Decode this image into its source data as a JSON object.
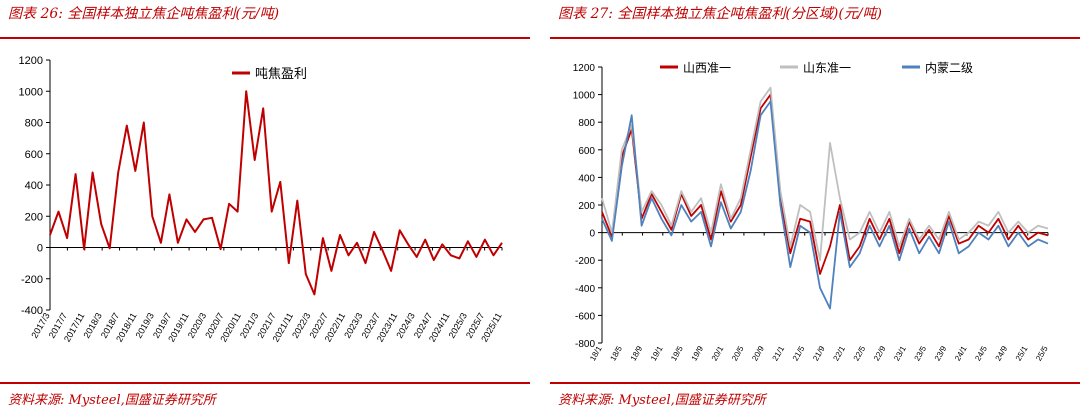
{
  "figures": [
    {
      "title": "图表 26:  全国样本独立焦企吨焦盈利(元/吨)",
      "source": "资料来源:  Mysteel,国盛证券研究所"
    },
    {
      "title": "图表 27:  全国样本独立焦企吨焦盈利(分区域)(元/吨)",
      "source": "资料来源:  Mysteel,国盛证券研究所"
    }
  ],
  "chart_data": [
    {
      "type": "line",
      "title": "",
      "xlabel": "",
      "ylabel": "",
      "ylim": [
        -400,
        1200
      ],
      "yticks": [
        -400,
        -200,
        0,
        200,
        400,
        600,
        800,
        1000,
        1200
      ],
      "x_tick_labels": [
        "2017/3",
        "2017/7",
        "2017/11",
        "2018/3",
        "2018/7",
        "2018/11",
        "2019/3",
        "2019/7",
        "2019/11",
        "2020/3",
        "2020/7",
        "2020/11",
        "2021/3",
        "2021/7",
        "2021/11",
        "2022/3",
        "2022/7",
        "2022/11",
        "2023/3",
        "2023/7",
        "2023/11",
        "2024/3",
        "2024/7",
        "2024/11",
        "2025/3",
        "2025/7",
        "2025/11"
      ],
      "legend_position": "top-center",
      "grid": false,
      "series": [
        {
          "name": "吨焦盈利",
          "color": "#c00000",
          "x": [
            "2017/3",
            "2017/5",
            "2017/7",
            "2017/9",
            "2017/11",
            "2018/1",
            "2018/3",
            "2018/5",
            "2018/7",
            "2018/9",
            "2018/11",
            "2019/1",
            "2019/3",
            "2019/5",
            "2019/7",
            "2019/9",
            "2019/11",
            "2020/1",
            "2020/3",
            "2020/5",
            "2020/7",
            "2020/9",
            "2020/11",
            "2021/1",
            "2021/3",
            "2021/5",
            "2021/7",
            "2021/9",
            "2021/11",
            "2022/1",
            "2022/3",
            "2022/5",
            "2022/7",
            "2022/9",
            "2022/11",
            "2023/1",
            "2023/3",
            "2023/5",
            "2023/7",
            "2023/9",
            "2023/11",
            "2024/1",
            "2024/3",
            "2024/5",
            "2024/7",
            "2024/9",
            "2024/11",
            "2025/1",
            "2025/3",
            "2025/5",
            "2025/7",
            "2025/9",
            "2025/11",
            "2026/1"
          ],
          "values": [
            80,
            230,
            60,
            470,
            -10,
            480,
            150,
            -5,
            480,
            780,
            490,
            800,
            200,
            30,
            340,
            30,
            180,
            100,
            180,
            190,
            -10,
            280,
            230,
            1000,
            560,
            890,
            230,
            420,
            -100,
            300,
            -170,
            -300,
            60,
            -150,
            80,
            -50,
            30,
            -100,
            100,
            -20,
            -150,
            110,
            20,
            -60,
            50,
            -80,
            20,
            -50,
            -70,
            40,
            -60,
            50,
            -50,
            30
          ]
        }
      ]
    },
    {
      "type": "line",
      "title": "",
      "xlabel": "",
      "ylabel": "",
      "ylim": [
        -800,
        1200
      ],
      "yticks": [
        -800,
        -600,
        -400,
        -200,
        0,
        200,
        400,
        600,
        800,
        1000,
        1200
      ],
      "x_tick_labels": [
        "18/1",
        "18/5",
        "18/9",
        "19/1",
        "19/5",
        "19/9",
        "20/1",
        "20/5",
        "20/9",
        "21/1",
        "21/5",
        "21/9",
        "22/1",
        "22/5",
        "22/9",
        "23/1",
        "23/5",
        "23/9",
        "24/1",
        "24/5",
        "24/9",
        "25/1",
        "25/5"
      ],
      "legend_position": "top",
      "grid": false,
      "x": [
        "18/1",
        "18/3",
        "18/5",
        "18/7",
        "18/9",
        "18/11",
        "19/1",
        "19/3",
        "19/5",
        "19/7",
        "19/9",
        "19/11",
        "20/1",
        "20/3",
        "20/5",
        "20/7",
        "20/9",
        "20/11",
        "21/1",
        "21/3",
        "21/5",
        "21/7",
        "21/9",
        "21/11",
        "22/1",
        "22/3",
        "22/5",
        "22/7",
        "22/9",
        "22/11",
        "23/1",
        "23/3",
        "23/5",
        "23/7",
        "23/9",
        "23/11",
        "24/1",
        "24/3",
        "24/5",
        "24/7",
        "24/9",
        "24/11",
        "25/1",
        "25/3",
        "25/5",
        "25/7"
      ],
      "series": [
        {
          "name": "山西准一",
          "color": "#c00000",
          "values": [
            150,
            -30,
            550,
            750,
            100,
            280,
            150,
            20,
            280,
            120,
            200,
            -50,
            300,
            80,
            200,
            550,
            900,
            1000,
            250,
            -150,
            100,
            80,
            -300,
            -100,
            200,
            -200,
            -100,
            100,
            -50,
            100,
            -150,
            80,
            -80,
            20,
            -100,
            120,
            -80,
            -50,
            50,
            0,
            100,
            -50,
            50,
            -50,
            0,
            -20
          ]
        },
        {
          "name": "山东准一",
          "color": "#bfbfbf",
          "values": [
            250,
            0,
            600,
            780,
            150,
            300,
            200,
            50,
            300,
            150,
            250,
            0,
            350,
            100,
            250,
            600,
            950,
            1050,
            300,
            -100,
            200,
            150,
            -200,
            650,
            250,
            -50,
            0,
            150,
            0,
            150,
            -100,
            100,
            -50,
            50,
            -50,
            150,
            -50,
            0,
            80,
            50,
            150,
            0,
            80,
            0,
            50,
            30
          ]
        },
        {
          "name": "内蒙二级",
          "color": "#4f81bd",
          "values": [
            100,
            -60,
            480,
            850,
            50,
            250,
            100,
            -20,
            200,
            80,
            150,
            -100,
            220,
            30,
            150,
            450,
            850,
            950,
            200,
            -250,
            50,
            0,
            -400,
            -550,
            150,
            -250,
            -150,
            50,
            -100,
            50,
            -200,
            30,
            -150,
            -30,
            -150,
            80,
            -150,
            -100,
            0,
            -50,
            50,
            -100,
            0,
            -100,
            -50,
            -80
          ]
        }
      ]
    }
  ]
}
